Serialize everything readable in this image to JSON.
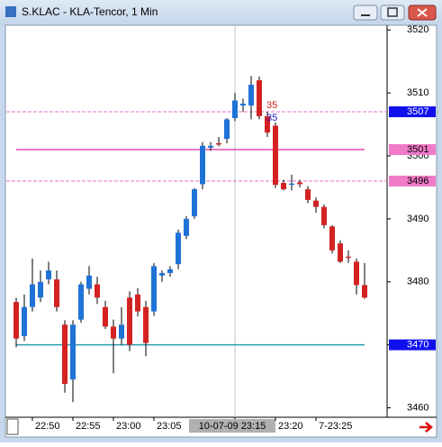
{
  "window": {
    "title": "S.KLAC - KLA-Tencor, 1 Min"
  },
  "chart_data": {
    "type": "candlestick",
    "categories": [
      null,
      null,
      "22:50",
      null,
      null,
      null,
      null,
      "22:55",
      null,
      null,
      null,
      null,
      "23:00",
      null,
      null,
      null,
      null,
      "23:05",
      null,
      null,
      null,
      null,
      null,
      null,
      null,
      null,
      null,
      "10-07-09 23:15",
      null,
      null,
      null,
      null,
      "23:20",
      null,
      null,
      null,
      null,
      "7-23:25",
      null,
      null,
      null,
      null,
      null,
      null
    ],
    "open": [
      3476.8,
      3471.4,
      3476.0,
      3477.5,
      3480.4,
      3480.4,
      3473.2,
      3464.5,
      3474.0,
      3478.9,
      3479.6,
      3476.0,
      3472.9,
      3471.0,
      3477.5,
      3478.0,
      3476.0,
      3475.3,
      3481.0,
      3481.4,
      3482.8,
      3487.3,
      3490.4,
      3495.5,
      3501.3,
      3502.0,
      3502.7,
      3506.0,
      3508.0,
      3508.0,
      3512.0,
      3506.3,
      3504.8,
      3495.7,
      3495.4,
      3495.8,
      3494.7,
      3492.9,
      3491.9,
      3488.8,
      3486.1,
      3484.0,
      3483.2,
      3479.5
    ],
    "high": [
      3477.5,
      3478.0,
      3483.7,
      3481.8,
      3483.2,
      3481.8,
      3473.9,
      3473.9,
      3480.0,
      3482.5,
      3480.8,
      3477.0,
      3474.0,
      3476.0,
      3478.5,
      3479.0,
      3477.0,
      3483.0,
      3481.8,
      3482.5,
      3488.3,
      3490.4,
      3494.9,
      3502.2,
      3502.2,
      3503.0,
      3506.0,
      3510.0,
      3509.1,
      3512.7,
      3512.6,
      3507.0,
      3505.3,
      3496.2,
      3497.0,
      3496.2,
      3495.2,
      3493.4,
      3492.3,
      3489.0,
      3486.6,
      3485.0,
      3483.7,
      3483.0
    ],
    "low": [
      3469.6,
      3470.6,
      3475.3,
      3476.8,
      3479.6,
      3475.3,
      3462.4,
      3460.9,
      3473.5,
      3478.0,
      3476.5,
      3472.5,
      3465.5,
      3470.0,
      3469.0,
      3474.5,
      3468.2,
      3474.6,
      3480.0,
      3480.8,
      3482.0,
      3486.8,
      3490.0,
      3494.7,
      3500.8,
      3501.5,
      3502.0,
      3505.5,
      3507.0,
      3505.8,
      3505.8,
      3503.0,
      3494.9,
      3494.5,
      3494.5,
      3495.0,
      3492.5,
      3491.0,
      3488.5,
      3484.5,
      3483.0,
      3483.0,
      3478.0,
      3477.3
    ],
    "close": [
      3471.0,
      3476.0,
      3479.6,
      3480.0,
      3481.8,
      3476.0,
      3463.8,
      3473.2,
      3479.6,
      3481.0,
      3477.5,
      3472.9,
      3471.0,
      3473.2,
      3470.0,
      3475.3,
      3470.3,
      3482.5,
      3481.4,
      3482.0,
      3487.8,
      3490.0,
      3494.7,
      3501.6,
      3501.6,
      3501.8,
      3505.8,
      3508.8,
      3508.3,
      3511.3,
      3506.3,
      3503.7,
      3495.4,
      3494.7,
      3495.6,
      3495.5,
      3493.0,
      3491.9,
      3489.0,
      3485.0,
      3483.2,
      3483.8,
      3479.5,
      3477.5
    ],
    "up_color": "#1f72d6",
    "down_color": "#d42222",
    "ylim": [
      3458.5,
      3520.6
    ],
    "yticks": [
      3460,
      3470,
      3480,
      3490,
      3500,
      3510,
      3520
    ],
    "crosshair_index": 27,
    "levels": [
      {
        "value": 3507,
        "color": "#e070c8",
        "label_color": "#1010ee",
        "dashed": true
      },
      {
        "value": 3501,
        "color": "#e858b8",
        "label_color": "#f07ac8",
        "dashed": false
      },
      {
        "value": 3496,
        "color": "#e070c8",
        "label_color": "#f07ac8",
        "dashed": true
      },
      {
        "value": 3470,
        "color": "#2a9ab0",
        "label_color": "#1010ee",
        "dashed": false
      }
    ],
    "annotations": [
      {
        "text": "35",
        "color": "#d02020"
      },
      {
        "text": "35",
        "color": "#2020d0"
      }
    ]
  }
}
